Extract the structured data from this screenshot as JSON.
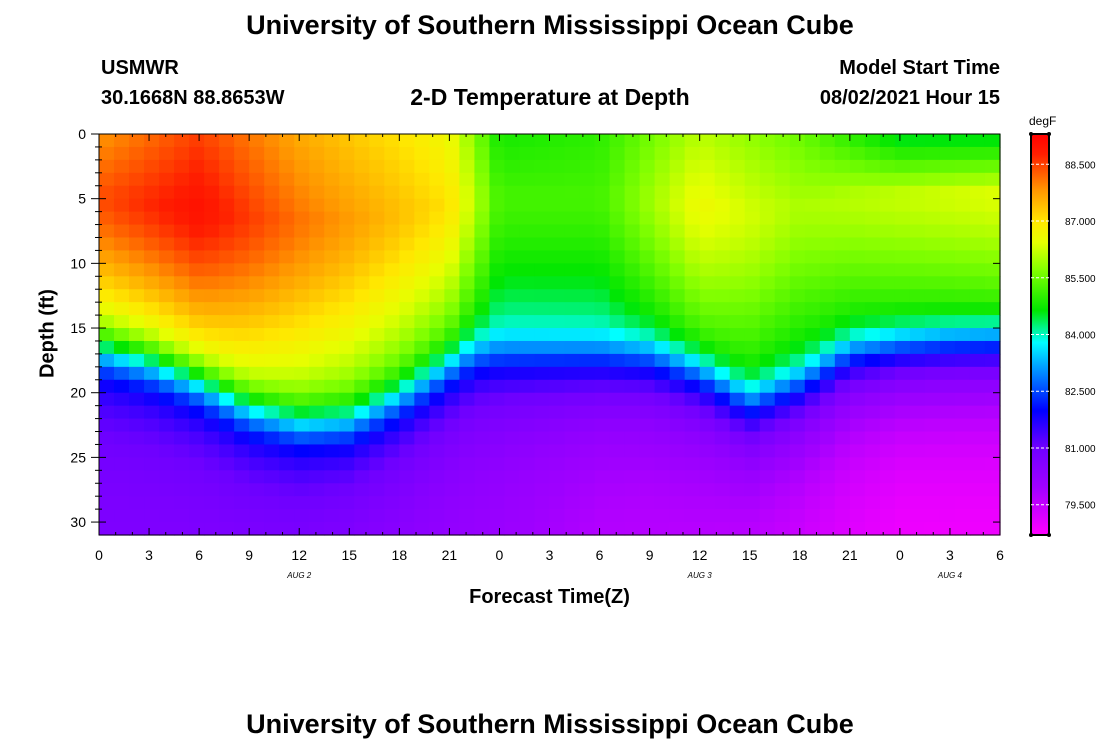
{
  "header": {
    "title_top": "University of Southern Mississippi Ocean Cube",
    "station": "USMWR",
    "coords": "30.1668N  88.8653W",
    "plot_title": "2-D Temperature at Depth",
    "model_label": "Model Start Time",
    "model_time": "08/02/2021 Hour 15",
    "title_bottom": "University of Southern Mississippi Ocean Cube"
  },
  "chart_data": {
    "type": "heatmap",
    "title": "2-D Temperature at Depth",
    "xlabel": "Forecast Time(Z)",
    "ylabel": "Depth (ft)",
    "x_ticks": [
      "0",
      "3",
      "6",
      "9",
      "12",
      "15",
      "18",
      "21",
      "0",
      "3",
      "6",
      "9",
      "12",
      "15",
      "18",
      "21",
      "0",
      "3",
      "6"
    ],
    "x_range_hours": [
      0,
      54
    ],
    "date_labels": [
      {
        "label": "AUG 2",
        "hour": 12
      },
      {
        "label": "AUG 3",
        "hour": 36
      },
      {
        "label": "AUG 4",
        "hour": 51
      }
    ],
    "y_ticks": [
      "0",
      "5",
      "10",
      "15",
      "20",
      "25",
      "30"
    ],
    "y_tick_values": [
      0,
      5,
      10,
      15,
      20,
      25,
      30
    ],
    "ylim": [
      0,
      31
    ],
    "colorbar": {
      "units": "degF",
      "min": 78.7,
      "max": 89.3,
      "tick_labels": [
        "88.500",
        "87.000",
        "85.500",
        "84.000",
        "82.500",
        "81.000",
        "79.500"
      ],
      "tick_values": [
        88.5,
        87.0,
        85.5,
        84.0,
        82.5,
        81.0,
        79.5
      ]
    },
    "model": {
      "surface_temp_hours": [
        0,
        6,
        12,
        18,
        21,
        24,
        30,
        36,
        42,
        48,
        54
      ],
      "surface_temp_degF": [
        87.8,
        88.5,
        87.6,
        87.0,
        86.6,
        84.8,
        85.0,
        86.1,
        85.5,
        84.4,
        84.4
      ],
      "warm_core_hours": [
        0,
        6,
        12,
        18,
        21,
        24,
        30,
        36,
        42,
        48,
        54
      ],
      "warm_core_degF": [
        88.4,
        89.0,
        88.1,
        87.4,
        87.0,
        85.2,
        85.2,
        86.6,
        86.0,
        86.2,
        86.4
      ],
      "thermocline_hours": [
        0,
        3,
        6,
        9,
        12,
        15,
        18,
        21,
        22.5,
        24,
        27,
        30,
        33,
        36,
        39,
        42,
        45,
        48,
        51,
        54
      ],
      "thermocline_depth_ft": [
        16.5,
        17.5,
        19.0,
        21.0,
        22.0,
        21.8,
        20.0,
        17.6,
        16.5,
        16.3,
        16.3,
        16.3,
        16.5,
        17.8,
        20.0,
        18.5,
        16.2,
        15.6,
        15.3,
        15.2
      ],
      "deep_temp_hours": [
        0,
        12,
        24,
        30,
        36,
        42,
        48,
        54
      ],
      "deep_temp_degF": [
        80.6,
        80.5,
        80.0,
        79.6,
        79.5,
        79.2,
        78.8,
        78.8
      ]
    }
  }
}
